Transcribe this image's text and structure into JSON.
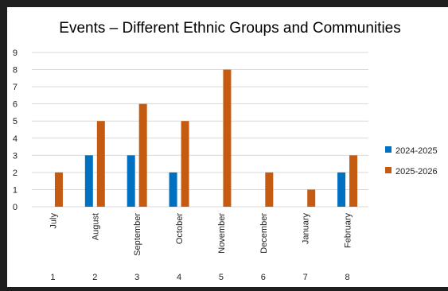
{
  "chart_data": {
    "type": "bar",
    "title": "Events – Different Ethnic Groups and  Communities",
    "categories": [
      "July",
      "August",
      "September",
      "October",
      "November",
      "December",
      "January",
      "February"
    ],
    "category_numbers": [
      "1",
      "2",
      "3",
      "4",
      "5",
      "6",
      "7",
      "8"
    ],
    "series": [
      {
        "name": "2024-2025",
        "color": "#0070c0",
        "values": [
          0,
          3,
          3,
          2,
          0,
          0,
          0,
          2
        ]
      },
      {
        "name": "2025-2026",
        "color": "#c55a11",
        "values": [
          2,
          5,
          6,
          5,
          8,
          2,
          1,
          3
        ]
      }
    ],
    "ylim": [
      0,
      9
    ],
    "yticks": [
      "0",
      "1",
      "2",
      "3",
      "4",
      "5",
      "6",
      "7",
      "8",
      "9"
    ],
    "grid": true,
    "legend_position": "right"
  }
}
